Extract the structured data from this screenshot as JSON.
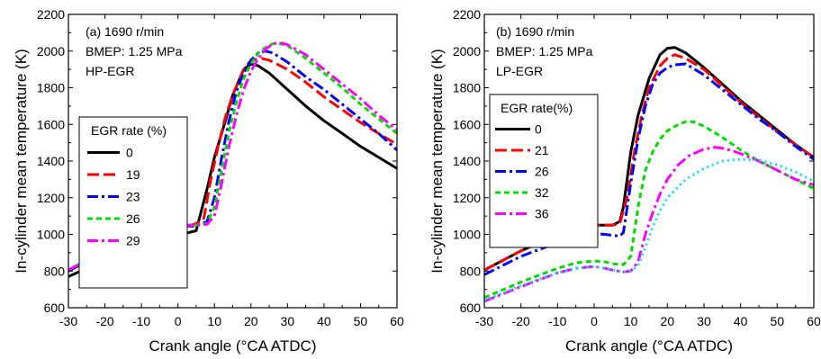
{
  "chart_data": [
    {
      "type": "line",
      "ylabel": "In-cylinder mean temperature (K)",
      "xlabel": "Crank angle (°CA ATDC)",
      "xlim": [
        -30,
        60
      ],
      "ylim": [
        600,
        2200
      ],
      "xticks": [
        -30,
        -20,
        -10,
        0,
        10,
        20,
        30,
        40,
        50,
        60
      ],
      "yticks": [
        600,
        800,
        1000,
        1200,
        1400,
        1600,
        1800,
        2000,
        2200
      ],
      "annotation": [
        "(a) 1690 r/min",
        "BMEP: 1.25 MPa",
        "HP-EGR"
      ],
      "legend_title": "EGR rate (%)",
      "legend_position": "left",
      "grid": false,
      "series": [
        {
          "name": "0",
          "color": "#000000",
          "dash": "solid",
          "x": [
            -30,
            -20,
            -10,
            -5,
            0,
            3,
            5,
            8,
            10,
            13,
            15,
            18,
            20,
            22,
            25,
            30,
            35,
            40,
            45,
            50,
            55,
            60
          ],
          "y": [
            770,
            860,
            945,
            985,
            1005,
            1010,
            1020,
            1250,
            1420,
            1620,
            1760,
            1900,
            1930,
            1920,
            1880,
            1790,
            1700,
            1620,
            1550,
            1480,
            1420,
            1360
          ]
        },
        {
          "name": "19",
          "color": "#ff0000",
          "dash": "long",
          "x": [
            -30,
            -20,
            -10,
            -5,
            0,
            3,
            5,
            7,
            9,
            11,
            13,
            15,
            18,
            20,
            23,
            25,
            30,
            35,
            40,
            45,
            50,
            55,
            60
          ],
          "y": [
            800,
            905,
            990,
            1020,
            1040,
            1045,
            1060,
            1080,
            1300,
            1480,
            1640,
            1760,
            1900,
            1950,
            1960,
            1950,
            1900,
            1830,
            1750,
            1680,
            1610,
            1550,
            1490
          ]
        },
        {
          "name": "23",
          "color": "#0000ff",
          "dash": "dashdot",
          "x": [
            -30,
            -20,
            -10,
            -5,
            0,
            3,
            5,
            8,
            10,
            12,
            14,
            16,
            18,
            20,
            22,
            24,
            26,
            30,
            35,
            40,
            45,
            50,
            55,
            60
          ],
          "y": [
            800,
            910,
            990,
            1025,
            1045,
            1045,
            1045,
            1070,
            1200,
            1420,
            1620,
            1780,
            1880,
            1950,
            1990,
            2000,
            1990,
            1940,
            1860,
            1790,
            1710,
            1630,
            1550,
            1460
          ]
        },
        {
          "name": "26",
          "color": "#00dd00",
          "dash": "short",
          "x": [
            -30,
            -20,
            -10,
            -5,
            0,
            3,
            5,
            8,
            10,
            12,
            14,
            16,
            18,
            20,
            22,
            24,
            26,
            28,
            30,
            35,
            40,
            45,
            50,
            55,
            60
          ],
          "y": [
            805,
            915,
            995,
            1030,
            1050,
            1050,
            1050,
            1060,
            1150,
            1350,
            1560,
            1720,
            1850,
            1930,
            1990,
            2020,
            2040,
            2040,
            2030,
            1960,
            1880,
            1800,
            1710,
            1630,
            1550
          ]
        },
        {
          "name": "29",
          "color": "#ff00ff",
          "dash": "dashdot",
          "x": [
            -30,
            -20,
            -10,
            -5,
            0,
            3,
            5,
            8,
            10,
            12,
            14,
            16,
            18,
            20,
            22,
            24,
            26,
            28,
            30,
            35,
            40,
            45,
            50,
            55,
            60
          ],
          "y": [
            805,
            915,
            995,
            1030,
            1050,
            1050,
            1050,
            1055,
            1100,
            1280,
            1480,
            1650,
            1790,
            1890,
            1960,
            2010,
            2040,
            2045,
            2035,
            1980,
            1900,
            1820,
            1740,
            1650,
            1570
          ]
        }
      ]
    },
    {
      "type": "line",
      "ylabel": "In-cylinder mean temperature (K)",
      "xlabel": "Crank angle (°CA ATDC)",
      "xlim": [
        -30,
        60
      ],
      "ylim": [
        600,
        2200
      ],
      "xticks": [
        -30,
        -20,
        -10,
        0,
        10,
        20,
        30,
        40,
        50,
        60
      ],
      "yticks": [
        600,
        800,
        1000,
        1200,
        1400,
        1600,
        1800,
        2000,
        2200
      ],
      "annotation": [
        "(b) 1690 r/min",
        "BMEP: 1.25 MPa",
        "LP-EGR"
      ],
      "legend_title": "EGR rate(%)",
      "legend_position": "left",
      "grid": false,
      "series": [
        {
          "name": "0",
          "color": "#000000",
          "dash": "solid",
          "x": [
            -30,
            -20,
            -10,
            -5,
            0,
            3,
            5,
            7,
            8,
            10,
            12,
            15,
            18,
            20,
            22,
            25,
            30,
            35,
            40,
            45,
            50,
            55,
            60
          ],
          "y": [
            805,
            910,
            995,
            1030,
            1050,
            1050,
            1050,
            1070,
            1150,
            1450,
            1650,
            1850,
            1980,
            2015,
            2020,
            1990,
            1910,
            1820,
            1730,
            1650,
            1570,
            1490,
            1420
          ]
        },
        {
          "name": "21",
          "color": "#ff0000",
          "dash": "long",
          "x": [
            -30,
            -20,
            -10,
            -5,
            0,
            3,
            5,
            7,
            9,
            11,
            13,
            15,
            18,
            20,
            22,
            25,
            30,
            35,
            40,
            45,
            50,
            55,
            60
          ],
          "y": [
            805,
            910,
            995,
            1030,
            1050,
            1050,
            1050,
            1060,
            1200,
            1450,
            1650,
            1800,
            1920,
            1960,
            1980,
            1960,
            1900,
            1810,
            1720,
            1640,
            1560,
            1490,
            1420
          ]
        },
        {
          "name": "26",
          "color": "#0000ff",
          "dash": "dashdot",
          "x": [
            -30,
            -20,
            -10,
            -5,
            0,
            3,
            5,
            7,
            8,
            10,
            12,
            14,
            16,
            18,
            20,
            22,
            25,
            30,
            35,
            40,
            45,
            50,
            55,
            60
          ],
          "y": [
            780,
            880,
            955,
            985,
            1005,
            1000,
            995,
            990,
            1010,
            1280,
            1520,
            1700,
            1820,
            1880,
            1910,
            1925,
            1930,
            1870,
            1790,
            1710,
            1630,
            1560,
            1480,
            1410
          ]
        },
        {
          "name": "32",
          "color": "#00dd00",
          "dash": "short",
          "x": [
            -30,
            -20,
            -10,
            -5,
            0,
            3,
            5,
            8,
            10,
            12,
            14,
            16,
            18,
            20,
            23,
            25,
            27,
            30,
            35,
            40,
            45,
            50,
            55,
            60
          ],
          "y": [
            655,
            740,
            815,
            845,
            855,
            850,
            840,
            835,
            880,
            1150,
            1350,
            1450,
            1520,
            1565,
            1600,
            1615,
            1615,
            1590,
            1530,
            1460,
            1400,
            1350,
            1300,
            1250
          ]
        },
        {
          "name": "36",
          "color": "#ff00ff",
          "dash": "dashdot",
          "x": [
            -30,
            -20,
            -10,
            -5,
            0,
            3,
            5,
            8,
            10,
            12,
            14,
            16,
            18,
            20,
            23,
            26,
            30,
            33,
            35,
            38,
            40,
            45,
            50,
            55,
            60
          ],
          "y": [
            635,
            715,
            790,
            815,
            825,
            815,
            805,
            795,
            800,
            850,
            1000,
            1120,
            1220,
            1300,
            1380,
            1430,
            1465,
            1475,
            1470,
            1455,
            1440,
            1400,
            1350,
            1300,
            1270
          ]
        },
        {
          "name": "",
          "color": "#00e5ee",
          "dash": "dot",
          "x": [
            -30,
            -20,
            -10,
            -5,
            0,
            3,
            5,
            8,
            10,
            12,
            14,
            16,
            18,
            20,
            25,
            30,
            35,
            40,
            45,
            50,
            55,
            60
          ],
          "y": [
            640,
            720,
            790,
            815,
            825,
            815,
            805,
            795,
            800,
            830,
            930,
            1040,
            1130,
            1200,
            1300,
            1360,
            1400,
            1410,
            1405,
            1380,
            1340,
            1290
          ]
        }
      ]
    }
  ]
}
